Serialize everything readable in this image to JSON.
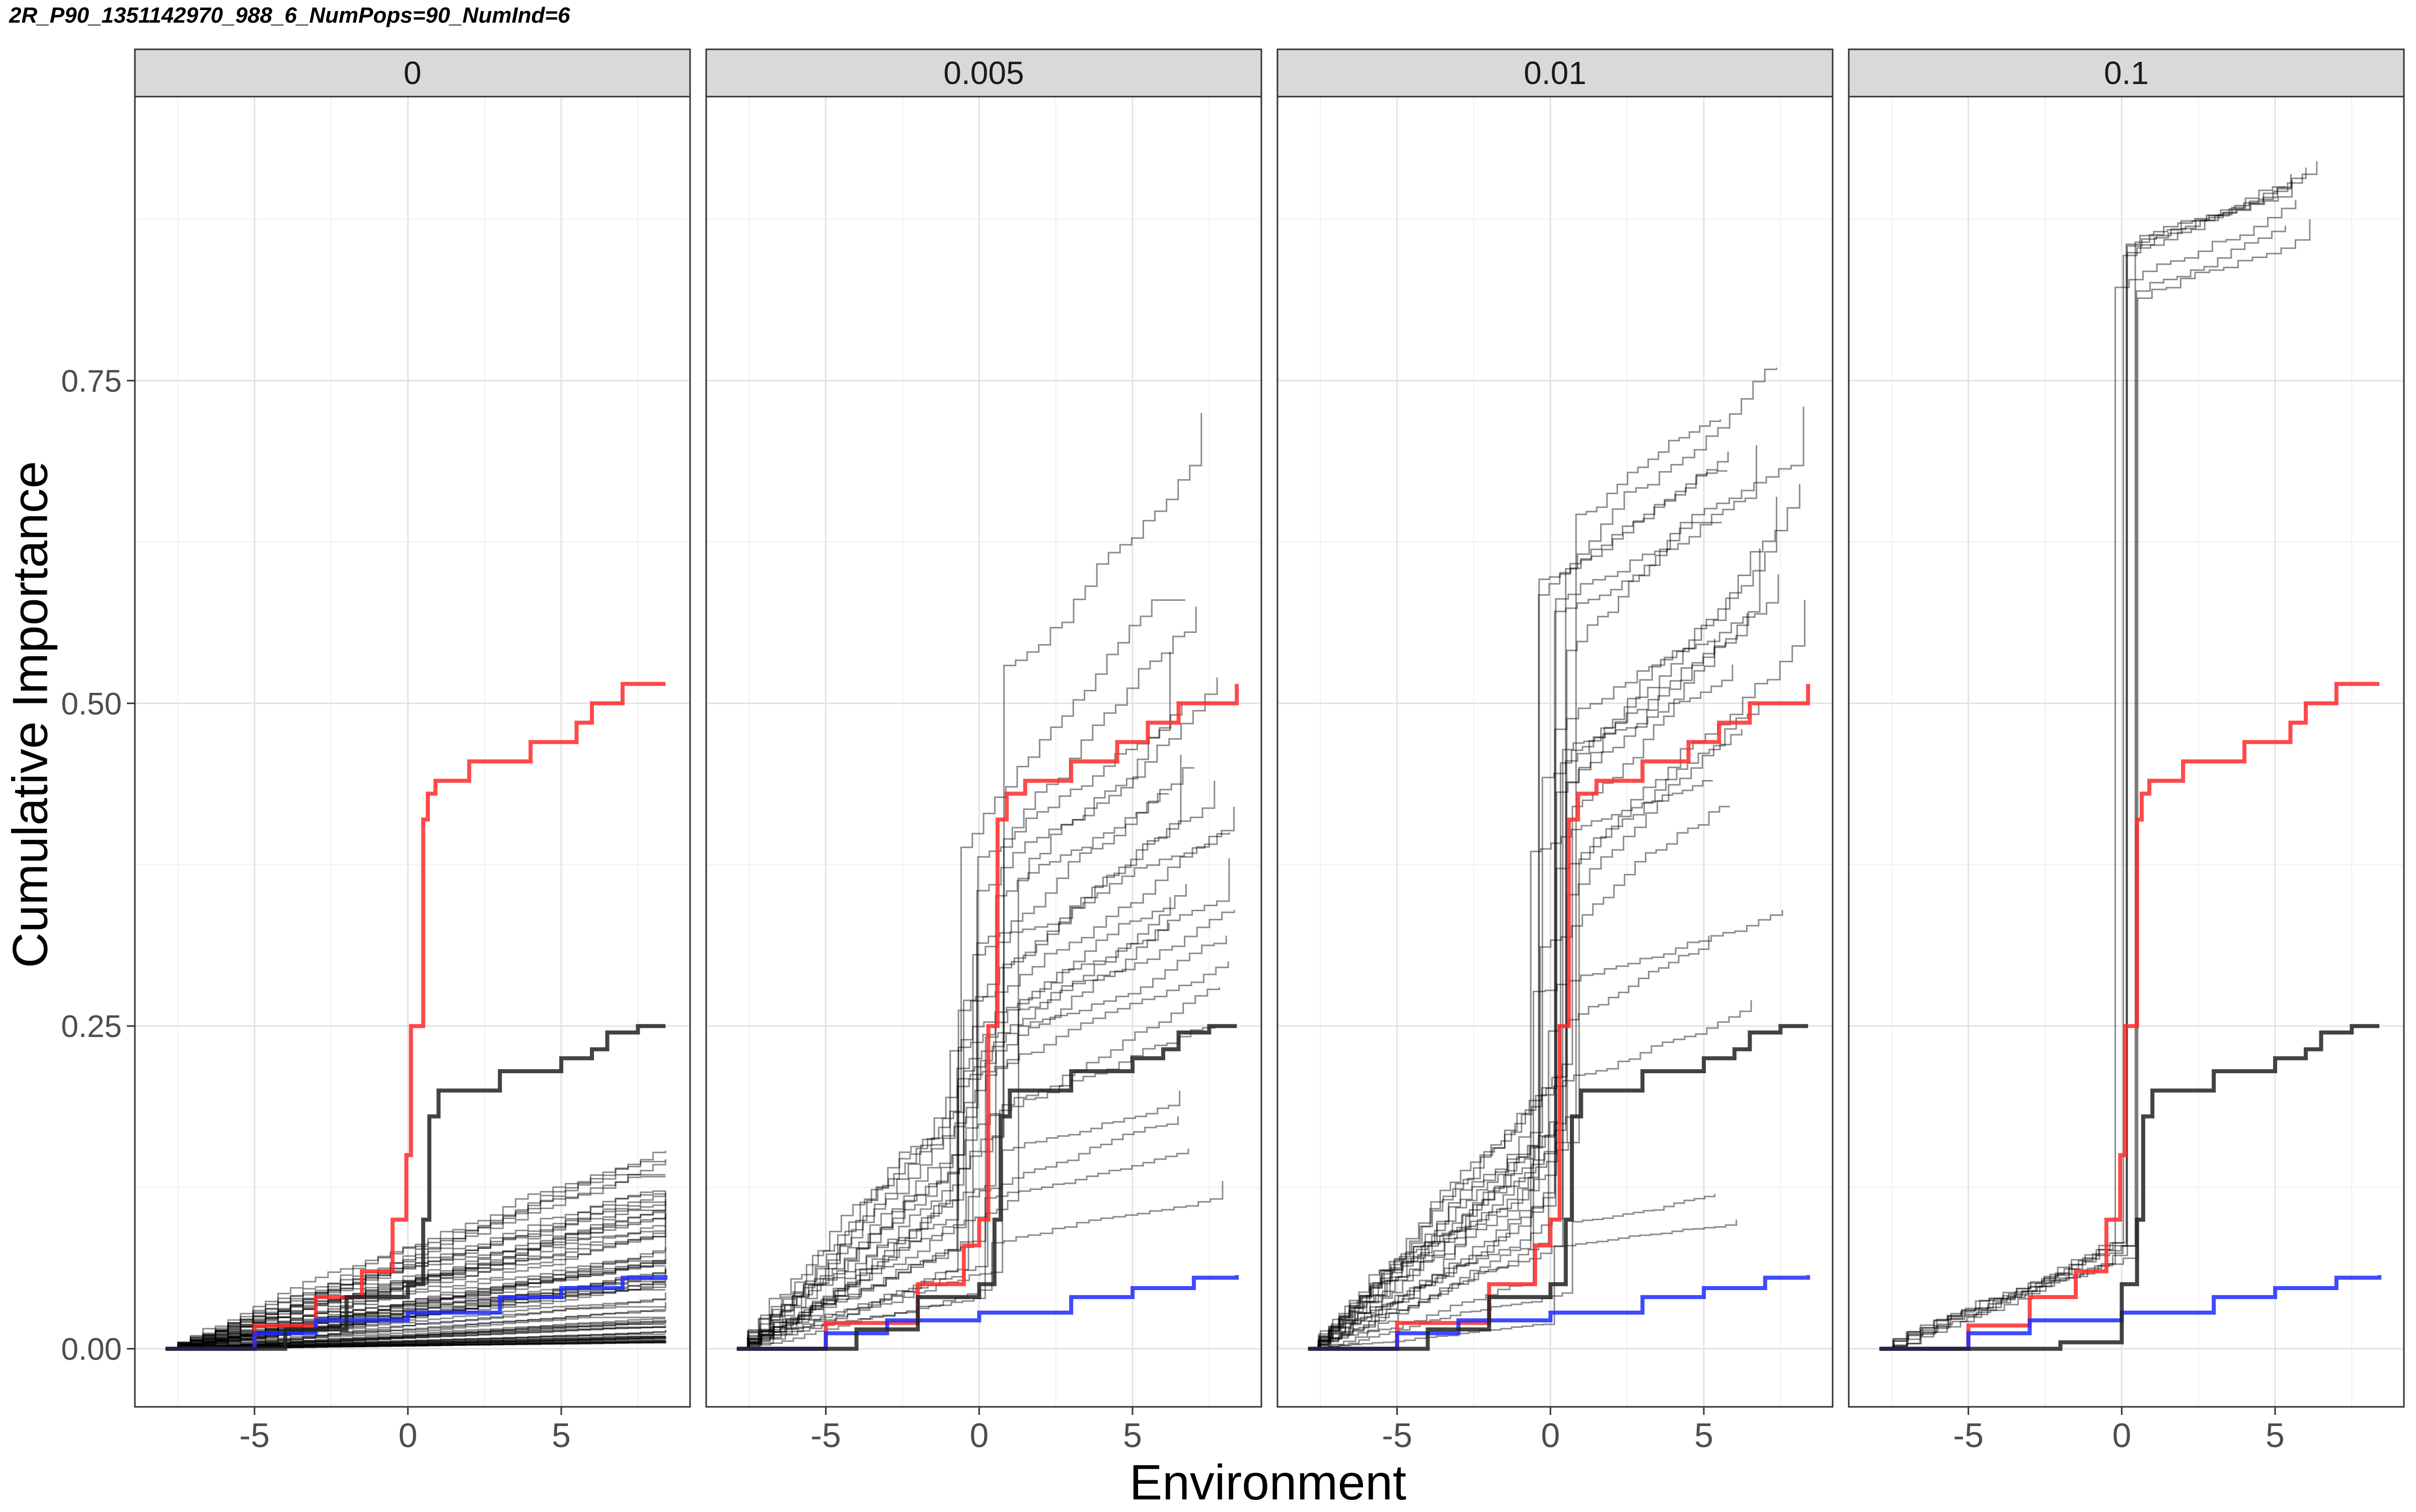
{
  "title": "2R_P90_1351142970_988_6_NumPops=90_NumInd=6",
  "chart_data": {
    "type": "line",
    "title": "2R_P90_1351142970_988_6_NumPops=90_NumInd=6",
    "xlabel": "Environment",
    "ylabel": "Cumulative Importance",
    "xlim": [
      -8.9,
      9.2
    ],
    "ylim": [
      -0.045,
      0.97
    ],
    "x_ticks": [
      -5,
      0,
      5
    ],
    "x_tick_labels": [
      "-5",
      "0",
      "5"
    ],
    "y_ticks": [
      0.0,
      0.25,
      0.5,
      0.75
    ],
    "y_tick_labels": [
      "0.00",
      "0.25",
      "0.50",
      "0.75"
    ],
    "grid": true,
    "legend": "none",
    "colors": {
      "red_line": "#ff2a2a",
      "blue_line": "#1f2aff",
      "black_mean": "#222222",
      "gray_lines": "#000000",
      "strip_bg": "#d9d9d9"
    },
    "facets": [
      {
        "label": "0",
        "series": [
          {
            "color": "red",
            "x": [
              -7.9,
              -5,
              -3,
              -1.5,
              -0.5,
              -0.05,
              0.1,
              0.35,
              0.5,
              0.65,
              0.9,
              2,
              4,
              5.5,
              6,
              7,
              8.4
            ],
            "y": [
              0.0,
              0.018,
              0.04,
              0.06,
              0.1,
              0.15,
              0.25,
              0.25,
              0.41,
              0.43,
              0.44,
              0.455,
              0.47,
              0.485,
              0.5,
              0.515,
              0.515
            ]
          },
          {
            "color": "blue",
            "x": [
              -7.9,
              -5,
              -3,
              0,
              3,
              5,
              7,
              8.4
            ],
            "y": [
              0.0,
              0.012,
              0.022,
              0.028,
              0.04,
              0.047,
              0.055,
              0.057
            ]
          },
          {
            "color": "black",
            "x": [
              -7.9,
              -4,
              -2,
              0,
              0.5,
              0.7,
              1.0,
              3,
              5,
              6,
              6.5,
              7.5,
              8.4
            ],
            "y": [
              0.0,
              0.015,
              0.04,
              0.05,
              0.1,
              0.18,
              0.2,
              0.215,
              0.225,
              0.232,
              0.245,
              0.25,
              0.25
            ]
          }
        ]
      },
      {
        "label": "0.005",
        "series": [
          {
            "color": "red",
            "x": [
              -7.9,
              -5,
              -2,
              -0.5,
              0,
              0.3,
              0.6,
              0.9,
              1.5,
              3,
              4.5,
              5.5,
              6.5,
              8.4
            ],
            "y": [
              0.0,
              0.02,
              0.05,
              0.08,
              0.1,
              0.25,
              0.41,
              0.43,
              0.44,
              0.455,
              0.47,
              0.485,
              0.5,
              0.515
            ]
          },
          {
            "color": "blue",
            "x": [
              -7.9,
              -5,
              -3,
              0,
              3,
              5,
              7,
              8.4
            ],
            "y": [
              0.0,
              0.012,
              0.022,
              0.028,
              0.04,
              0.047,
              0.055,
              0.057
            ]
          },
          {
            "color": "black",
            "x": [
              -7.9,
              -4,
              -2,
              0,
              0.5,
              0.7,
              1.0,
              3,
              5,
              6,
              6.5,
              7.5,
              8.4
            ],
            "y": [
              0.0,
              0.015,
              0.04,
              0.05,
              0.1,
              0.18,
              0.2,
              0.215,
              0.225,
              0.232,
              0.245,
              0.25,
              0.25
            ]
          }
        ]
      },
      {
        "label": "0.01",
        "series": [
          {
            "color": "red",
            "x": [
              -7.9,
              -5,
              -2,
              -0.5,
              0,
              0.3,
              0.6,
              0.9,
              1.5,
              3,
              4.5,
              5.5,
              6.5,
              8.4
            ],
            "y": [
              0.0,
              0.02,
              0.05,
              0.08,
              0.1,
              0.25,
              0.41,
              0.43,
              0.44,
              0.455,
              0.47,
              0.485,
              0.5,
              0.515
            ]
          },
          {
            "color": "blue",
            "x": [
              -7.9,
              -5,
              -3,
              0,
              3,
              5,
              7,
              8.4
            ],
            "y": [
              0.0,
              0.012,
              0.022,
              0.028,
              0.04,
              0.047,
              0.055,
              0.057
            ]
          },
          {
            "color": "black",
            "x": [
              -7.9,
              -4,
              -2,
              0,
              0.5,
              0.7,
              1.0,
              3,
              5,
              6,
              6.5,
              7.5,
              8.4
            ],
            "y": [
              0.0,
              0.015,
              0.04,
              0.05,
              0.1,
              0.18,
              0.2,
              0.215,
              0.225,
              0.232,
              0.245,
              0.25,
              0.25
            ]
          }
        ]
      },
      {
        "label": "0.1",
        "series": [
          {
            "color": "red",
            "x": [
              -7.9,
              -5,
              -3,
              -1.5,
              -0.5,
              -0.05,
              0.1,
              0.35,
              0.5,
              0.65,
              0.9,
              2,
              4,
              5.5,
              6,
              7,
              8.4
            ],
            "y": [
              0.0,
              0.018,
              0.04,
              0.06,
              0.1,
              0.15,
              0.25,
              0.25,
              0.41,
              0.43,
              0.44,
              0.455,
              0.47,
              0.485,
              0.5,
              0.515,
              0.515
            ]
          },
          {
            "color": "blue",
            "x": [
              -7.9,
              -5,
              -3,
              0,
              3,
              5,
              7,
              8.4
            ],
            "y": [
              0.0,
              0.012,
              0.022,
              0.028,
              0.04,
              0.047,
              0.055,
              0.057
            ]
          },
          {
            "color": "black",
            "x": [
              -7.9,
              -4,
              -2,
              0,
              0.5,
              0.7,
              1.0,
              3,
              5,
              6,
              6.5,
              7.5,
              8.4
            ],
            "y": [
              0.0,
              0.0,
              0.005,
              0.05,
              0.1,
              0.18,
              0.2,
              0.215,
              0.225,
              0.232,
              0.245,
              0.25,
              0.25
            ]
          }
        ]
      }
    ]
  }
}
